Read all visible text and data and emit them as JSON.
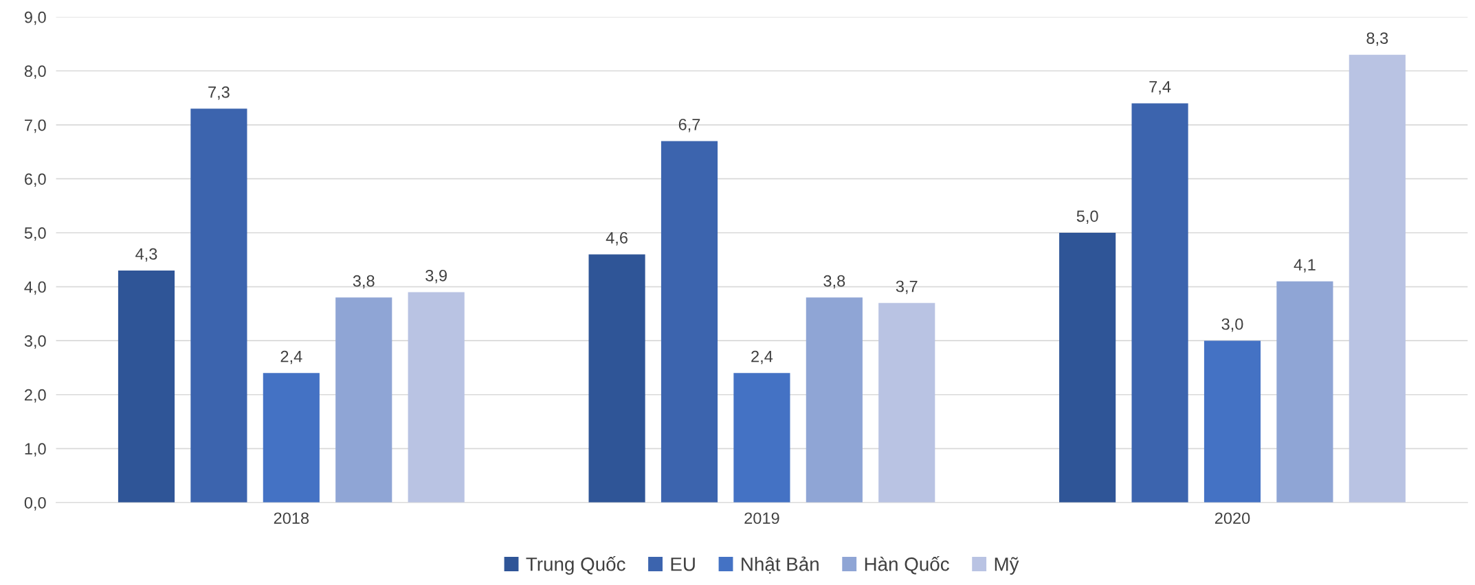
{
  "chart_data": {
    "type": "bar",
    "categories": [
      "2018",
      "2019",
      "2020"
    ],
    "series": [
      {
        "name": "Trung Quốc",
        "color": "#2f5597",
        "values": [
          4.3,
          4.6,
          5.0
        ],
        "value_labels": [
          "4,3",
          "4,6",
          "5,0"
        ]
      },
      {
        "name": "EU",
        "color": "#3c64ae",
        "values": [
          7.3,
          6.7,
          7.4
        ],
        "value_labels": [
          "7,3",
          "6,7",
          "7,4"
        ]
      },
      {
        "name": "Nhật Bản",
        "color": "#4472c4",
        "values": [
          2.4,
          2.4,
          3.0
        ],
        "value_labels": [
          "2,4",
          "2,4",
          "3,0"
        ]
      },
      {
        "name": "Hàn Quốc",
        "color": "#8fa5d5",
        "values": [
          3.8,
          3.8,
          4.1
        ],
        "value_labels": [
          "3,8",
          "3,8",
          "4,1"
        ]
      },
      {
        "name": "Mỹ",
        "color": "#b9c3e3",
        "values": [
          3.9,
          3.7,
          8.3
        ],
        "value_labels": [
          "3,9",
          "3,7",
          "8,3"
        ]
      }
    ],
    "ylim": [
      0,
      9
    ],
    "yticks": [
      {
        "value": 0,
        "label": "0,0"
      },
      {
        "value": 1,
        "label": "1,0"
      },
      {
        "value": 2,
        "label": "2,0"
      },
      {
        "value": 3,
        "label": "3,0"
      },
      {
        "value": 4,
        "label": "4,0"
      },
      {
        "value": 5,
        "label": "5,0"
      },
      {
        "value": 6,
        "label": "6,0"
      },
      {
        "value": 7,
        "label": "7,0"
      },
      {
        "value": 8,
        "label": "8,0"
      },
      {
        "value": 9,
        "label": "9,0"
      }
    ],
    "grid": "y",
    "legend": "bottom"
  }
}
